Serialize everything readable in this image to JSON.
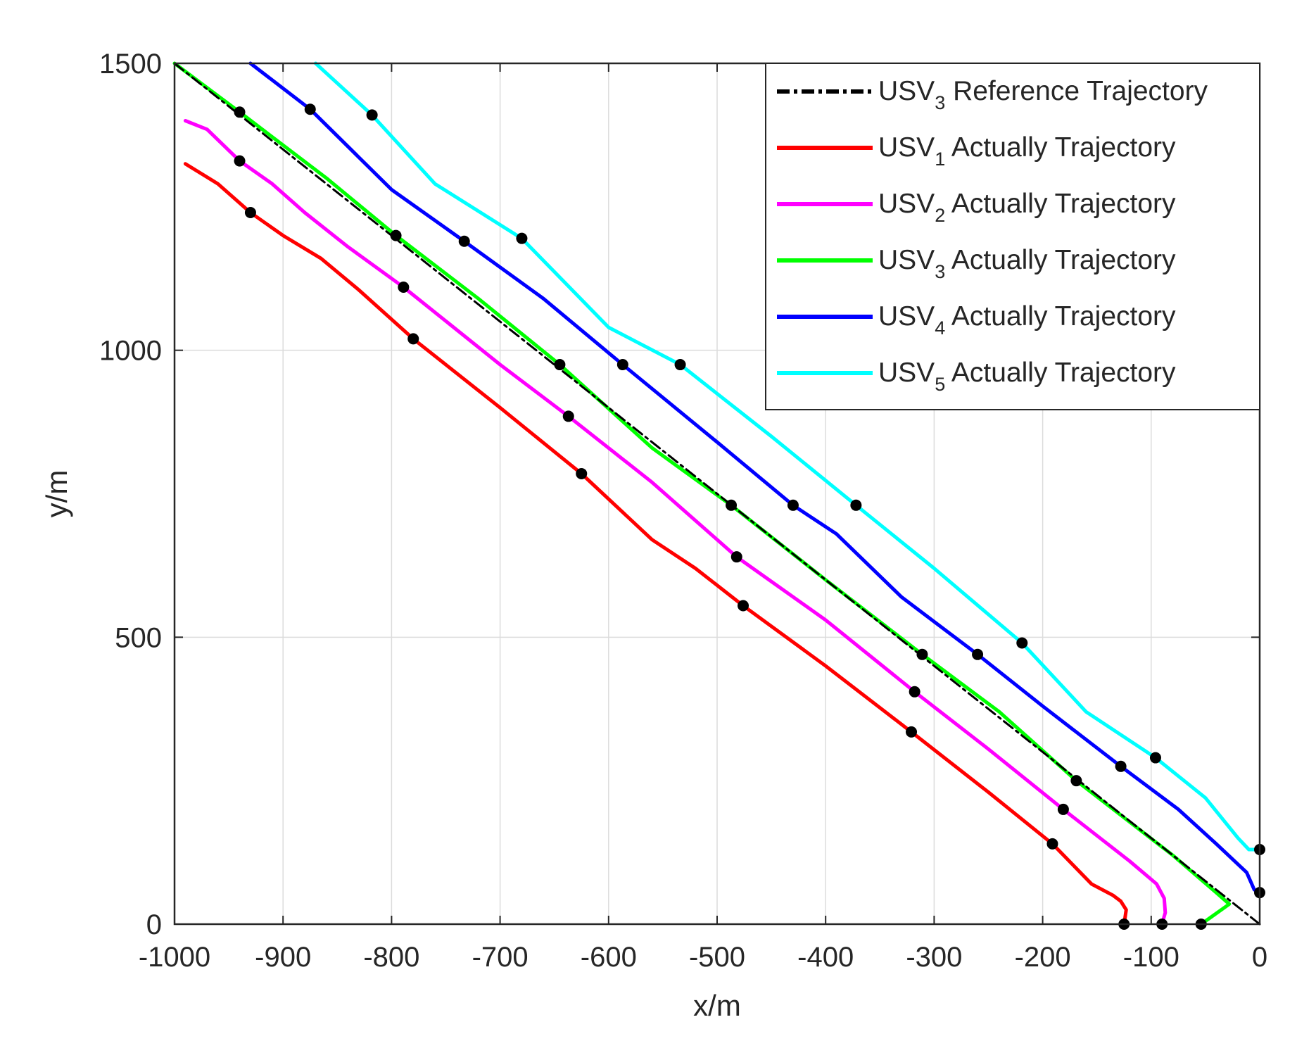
{
  "chart_data": {
    "type": "line",
    "xlabel": "x/m",
    "ylabel": "y/m",
    "xlim": [
      -1000,
      0
    ],
    "ylim": [
      0,
      1500
    ],
    "xticks": [
      -1000,
      -900,
      -800,
      -700,
      -600,
      -500,
      -400,
      -300,
      -200,
      -100,
      0
    ],
    "yticks": [
      0,
      500,
      1000,
      1500
    ],
    "grid": true,
    "legend_position": "top-right",
    "legend": [
      {
        "name": "USV3 Reference Trajectory",
        "prefix": "USV",
        "sub": "3",
        "suffix": " Reference Trajectory",
        "color": "#000000",
        "dash": "dashdot"
      },
      {
        "name": "USV1 Actually Trajectory",
        "prefix": "USV",
        "sub": "1",
        "suffix": " Actually Trajectory",
        "color": "#ff0000",
        "dash": "solid"
      },
      {
        "name": "USV2 Actually Trajectory",
        "prefix": "USV",
        "sub": "2",
        "suffix": " Actually Trajectory",
        "color": "#ff00ff",
        "dash": "solid"
      },
      {
        "name": "USV3 Actually Trajectory",
        "prefix": "USV",
        "sub": "3",
        "suffix": " Actually Trajectory",
        "color": "#00ff00",
        "dash": "solid"
      },
      {
        "name": "USV4 Actually Trajectory",
        "prefix": "USV",
        "sub": "4",
        "suffix": " Actually Trajectory",
        "color": "#0000ff",
        "dash": "solid"
      },
      {
        "name": "USV5 Actually Trajectory",
        "prefix": "USV",
        "sub": "5",
        "suffix": " Actually Trajectory",
        "color": "#00ffff",
        "dash": "solid"
      }
    ],
    "series": [
      {
        "name": "USV3 Reference Trajectory",
        "color": "#000000",
        "dash": "dashdot",
        "x": [
          0,
          -1000
        ],
        "y": [
          0,
          1500
        ]
      },
      {
        "name": "USV1 Actually Trajectory",
        "color": "#ff0000",
        "x": [
          -125,
          -123,
          -128,
          -135,
          -155,
          -191,
          -250,
          -321,
          -400,
          -476,
          -520,
          -560,
          -625,
          -700,
          -780,
          -830,
          -865,
          -900,
          -930,
          -960,
          -990
        ],
        "y": [
          0,
          25,
          40,
          50,
          70,
          140,
          230,
          335,
          450,
          555,
          620,
          670,
          785,
          900,
          1020,
          1105,
          1160,
          1200,
          1240,
          1290,
          1325
        ]
      },
      {
        "name": "USV2 Actually Trajectory",
        "color": "#ff00ff",
        "x": [
          -90,
          -87,
          -88,
          -95,
          -120,
          -181,
          -250,
          -318,
          -400,
          -482,
          -560,
          -637,
          -700,
          -789,
          -840,
          -880,
          -910,
          -940,
          -970,
          -990
        ],
        "y": [
          0,
          20,
          45,
          70,
          110,
          200,
          305,
          405,
          530,
          640,
          770,
          885,
          975,
          1110,
          1180,
          1240,
          1290,
          1330,
          1385,
          1400
        ]
      },
      {
        "name": "USV3 Actually Trajectory",
        "color": "#00ff00",
        "x": [
          -54,
          -45,
          -28,
          -40,
          -80,
          -169,
          -240,
          -311,
          -400,
          -487,
          -560,
          -645,
          -720,
          -796,
          -860,
          -940,
          -1000
        ],
        "y": [
          0,
          12,
          35,
          55,
          120,
          250,
          370,
          470,
          600,
          730,
          830,
          975,
          1090,
          1200,
          1300,
          1415,
          1500
        ]
      },
      {
        "name": "USV4 Actually Trajectory",
        "color": "#0000ff",
        "x": [
          0,
          -5,
          -12,
          -40,
          -75,
          -128,
          -200,
          -260,
          -330,
          -390,
          -430,
          -500,
          -587,
          -660,
          -733,
          -800,
          -875,
          -930
        ],
        "y": [
          55,
          60,
          90,
          140,
          200,
          275,
          380,
          470,
          570,
          680,
          730,
          840,
          975,
          1090,
          1190,
          1280,
          1420,
          1500
        ]
      },
      {
        "name": "USV5 Actually Trajectory",
        "color": "#00ffff",
        "x": [
          0,
          -10,
          -20,
          -50,
          -96,
          -160,
          -219,
          -300,
          -372,
          -450,
          -534,
          -600,
          -680,
          -760,
          -818,
          -870
        ],
        "y": [
          130,
          130,
          150,
          220,
          290,
          370,
          490,
          620,
          730,
          850,
          975,
          1040,
          1195,
          1290,
          1410,
          1500
        ]
      }
    ],
    "markers": [
      {
        "series": "USV1 Actually Trajectory",
        "x": [
          -125,
          -191,
          -321,
          -476,
          -625,
          -780,
          -930
        ],
        "y": [
          0,
          140,
          335,
          555,
          785,
          1020,
          1240
        ]
      },
      {
        "series": "USV2 Actually Trajectory",
        "x": [
          -90,
          -181,
          -318,
          -482,
          -637,
          -789,
          -940
        ],
        "y": [
          0,
          200,
          405,
          640,
          885,
          1110,
          1330
        ]
      },
      {
        "series": "USV3 Actually Trajectory",
        "x": [
          -54,
          -169,
          -311,
          -487,
          -645,
          -796,
          -940
        ],
        "y": [
          0,
          250,
          470,
          730,
          975,
          1200,
          1415
        ]
      },
      {
        "series": "USV4 Actually Trajectory",
        "x": [
          0,
          -128,
          -260,
          -430,
          -587,
          -733,
          -875
        ],
        "y": [
          55,
          275,
          470,
          730,
          975,
          1190,
          1420
        ]
      },
      {
        "series": "USV5 Actually Trajectory",
        "x": [
          0,
          -96,
          -219,
          -372,
          -534,
          -680,
          -818
        ],
        "y": [
          130,
          290,
          490,
          730,
          975,
          1195,
          1410
        ]
      }
    ]
  }
}
